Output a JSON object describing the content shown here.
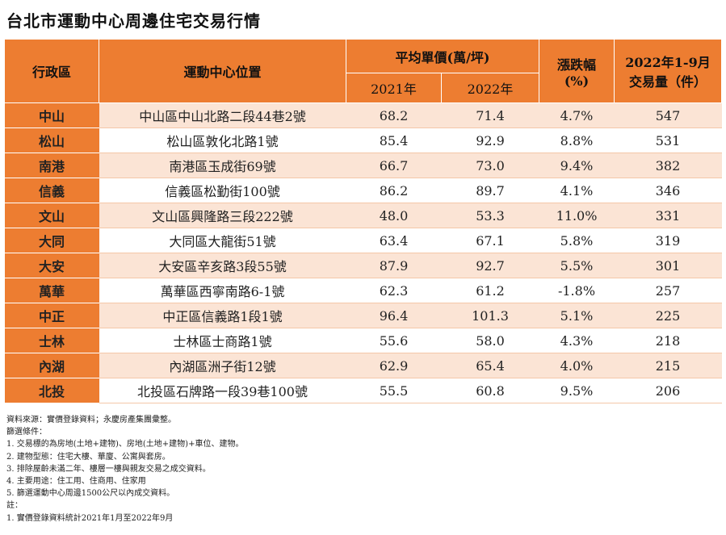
{
  "title": "台北市運動中心周邊住宅交易行情",
  "table": {
    "headers": {
      "district": "行政區",
      "location": "運動中心位置",
      "price": "平均單價(萬/坪)",
      "y2021": "2021年",
      "y2022": "2022年",
      "change": [
        "漲跌幅",
        "(%)"
      ],
      "volume": [
        "2022年1-9月",
        "交易量（件）"
      ]
    },
    "rows": [
      [
        "中山",
        "中山區中山北路二段44巷2號",
        "68.2",
        "71.4",
        "4.7%",
        "547"
      ],
      [
        "松山",
        "松山區敦化北路1號",
        "85.4",
        "92.9",
        "8.8%",
        "531"
      ],
      [
        "南港",
        "南港區玉成街69號",
        "66.7",
        "73.0",
        "9.4%",
        "382"
      ],
      [
        "信義",
        "信義區松勤街100號",
        "86.2",
        "89.7",
        "4.1%",
        "346"
      ],
      [
        "文山",
        "文山區興隆路三段222號",
        "48.0",
        "53.3",
        "11.0%",
        "331"
      ],
      [
        "大同",
        "大同區大龍街51號",
        "63.4",
        "67.1",
        "5.8%",
        "319"
      ],
      [
        "大安",
        "大安區辛亥路3段55號",
        "87.9",
        "92.7",
        "5.5%",
        "301"
      ],
      [
        "萬華",
        "萬華區西寧南路6-1號",
        "62.3",
        "61.2",
        "-1.8%",
        "257"
      ],
      [
        "中正",
        "中正區信義路1段1號",
        "96.4",
        "101.3",
        "5.1%",
        "225"
      ],
      [
        "士林",
        "士林區士商路1號",
        "55.6",
        "58.0",
        "4.3%",
        "218"
      ],
      [
        "內湖",
        "內湖區洲子街12號",
        "62.9",
        "65.4",
        "4.0%",
        "215"
      ],
      [
        "北投",
        "北投區石牌路一段39巷100號",
        "55.5",
        "60.8",
        "9.5%",
        "206"
      ]
    ]
  },
  "notes": [
    "資料來源：實價登錄資料；永慶房產集團彙整。",
    "篩選條件：",
    "1. 交易標的為房地(土地+建物)、房地(土地+建物)+車位、建物。",
    "2. 建物型態：住宅大樓、華廈、公寓與套房。",
    "3. 排除屋齡未滿二年、樓層一樓與親友交易之成交資料。",
    "4. 主要用途：住工用、住商用、住家用",
    "5. 篩選運動中心周邊1500公尺以內成交資料。",
    "註：",
    "1. 實價登錄資料統計2021年1月至2022年9月"
  ]
}
